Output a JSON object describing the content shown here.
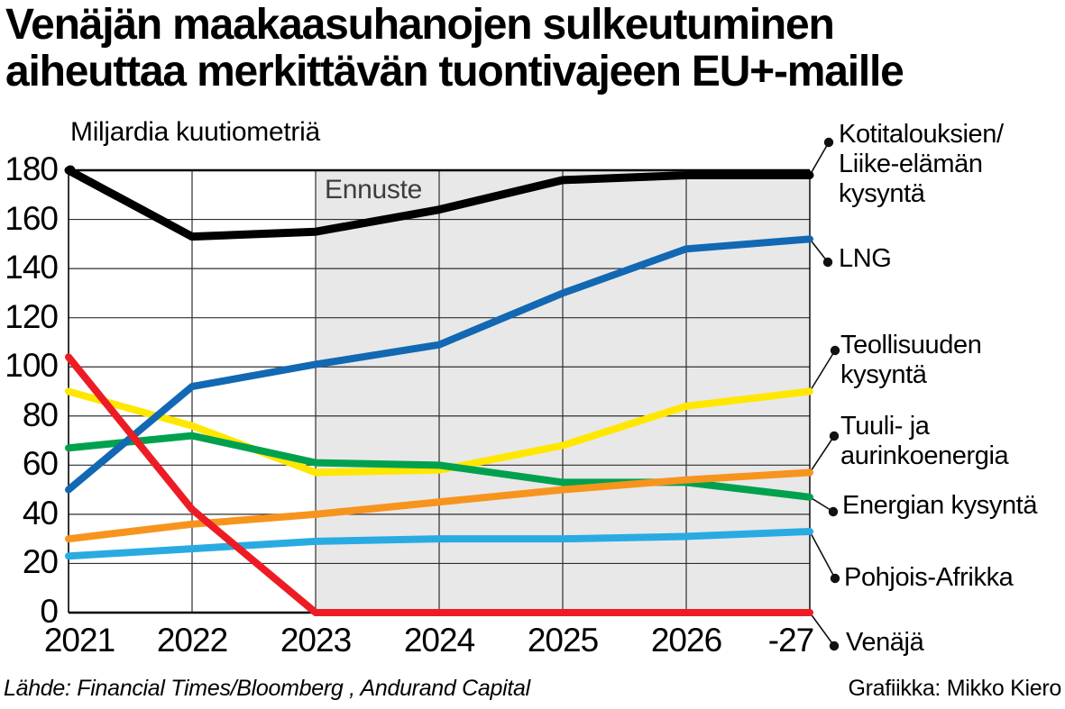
{
  "title": {
    "line1": "Venäjän maakaasuhanojen sulkeutuminen",
    "line2": "aiheuttaa merkittävän tuontivajeen EU+-maille"
  },
  "chart_data": {
    "type": "line",
    "title": "Venäjän maakaasuhanojen sulkeutuminen aiheuttaa merkittävän tuontivajeen EU+-maille",
    "unit_label": "Miljardia kuutiometriä",
    "forecast_label": "Ennuste",
    "forecast_starts_at": "2023",
    "x": [
      "2021",
      "2022",
      "2023",
      "2024",
      "2025",
      "2026",
      "-27"
    ],
    "ylim": [
      0,
      180
    ],
    "ytick_step": 20,
    "grid": true,
    "legend_position": "right",
    "forecast_fill": "#e8e8e8",
    "series": [
      {
        "id": "households",
        "name": "Kotitalouksien/\nLiike-elämän\nkysyntä",
        "color": "#000000",
        "values": [
          180,
          153,
          155,
          164,
          176,
          178,
          178
        ]
      },
      {
        "id": "lng",
        "name": "LNG",
        "color": "#1268b2",
        "values": [
          50,
          92,
          101,
          109,
          130,
          148,
          152
        ]
      },
      {
        "id": "industry",
        "name": "Teollisuuden\nkysyntä",
        "color": "#ffe700",
        "values": [
          90,
          76,
          57,
          58,
          68,
          84,
          90
        ]
      },
      {
        "id": "wind-solar",
        "name": "Tuuli- ja\naurinkoenergia",
        "color": "#f7941e",
        "values": [
          30,
          36,
          40,
          45,
          50,
          54,
          57
        ]
      },
      {
        "id": "energy-demand",
        "name": "Energian kysyntä",
        "color": "#00a14e",
        "values": [
          67,
          72,
          61,
          60,
          53,
          53,
          47
        ]
      },
      {
        "id": "north-africa",
        "name": "Pohjois-Afrikka",
        "color": "#29abe2",
        "values": [
          23,
          26,
          29,
          30,
          30,
          31,
          33
        ]
      },
      {
        "id": "russia",
        "name": "Venäjä",
        "color": "#ed1c24",
        "values": [
          104,
          42,
          0,
          0,
          0,
          0,
          0
        ]
      }
    ]
  },
  "footer": {
    "source": "Lähde: Financial Times/Bloomberg , Andurand Capital",
    "credit": "Grafiikka: Mikko Kiero"
  }
}
